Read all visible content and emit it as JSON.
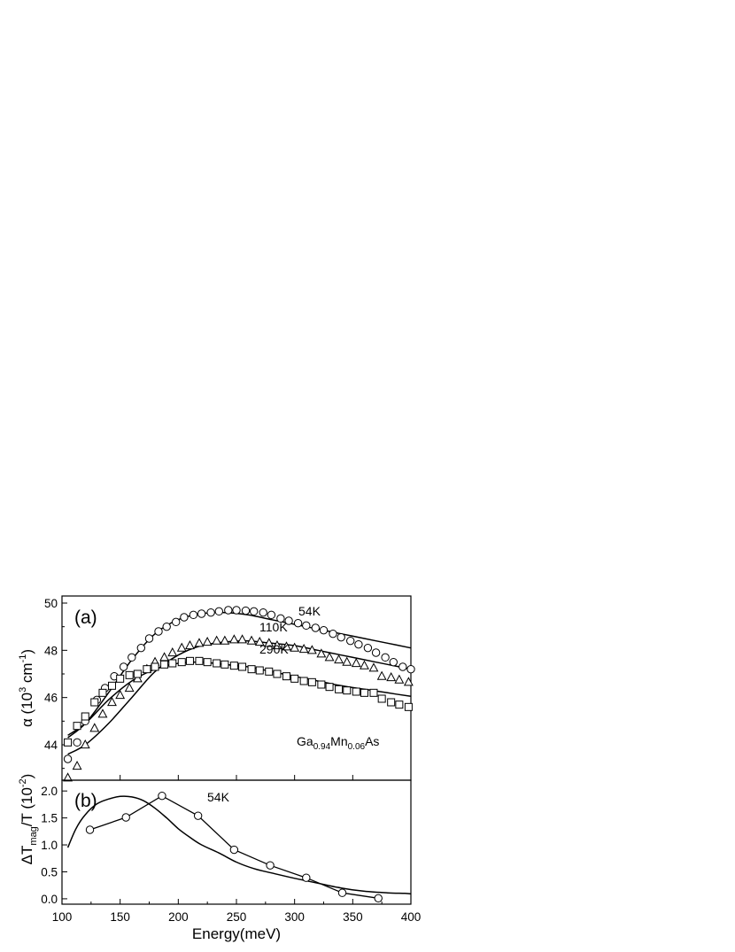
{
  "chart_data": [
    {
      "panel": "(a)",
      "type": "scatter",
      "ylabel": "α (10^3 cm^-1)",
      "ylabel_parts": {
        "main": "α (10",
        "sup1": "3",
        "mid": " cm",
        "sup2": "-1",
        "end": ")"
      },
      "xlim": [
        100,
        400
      ],
      "ylim": [
        42.5,
        50.3
      ],
      "yticks": [
        44,
        46,
        48,
        50
      ],
      "sample": {
        "base1": "Ga",
        "sub1": "0.94",
        "base2": "Mn",
        "sub2": "0.06",
        "base3": "As"
      },
      "series": [
        {
          "name": "54K",
          "marker": "circle",
          "points": [
            [
              105,
              43.4
            ],
            [
              113,
              44.1
            ],
            [
              120,
              45.0
            ],
            [
              130,
              45.9
            ],
            [
              137,
              46.4
            ],
            [
              145,
              46.9
            ],
            [
              153,
              47.3
            ],
            [
              160,
              47.7
            ],
            [
              168,
              48.1
            ],
            [
              175,
              48.5
            ],
            [
              183,
              48.8
            ],
            [
              190,
              49.0
            ],
            [
              198,
              49.2
            ],
            [
              205,
              49.4
            ],
            [
              213,
              49.5
            ],
            [
              220,
              49.55
            ],
            [
              228,
              49.6
            ],
            [
              235,
              49.65
            ],
            [
              243,
              49.7
            ],
            [
              250,
              49.7
            ],
            [
              258,
              49.68
            ],
            [
              265,
              49.65
            ],
            [
              273,
              49.6
            ],
            [
              280,
              49.5
            ],
            [
              288,
              49.35
            ],
            [
              295,
              49.25
            ],
            [
              303,
              49.15
            ],
            [
              310,
              49.05
            ],
            [
              318,
              48.95
            ],
            [
              325,
              48.85
            ],
            [
              333,
              48.7
            ],
            [
              340,
              48.55
            ],
            [
              348,
              48.4
            ],
            [
              355,
              48.25
            ],
            [
              363,
              48.1
            ],
            [
              370,
              47.9
            ],
            [
              378,
              47.7
            ],
            [
              385,
              47.5
            ],
            [
              393,
              47.3
            ],
            [
              400,
              47.2
            ]
          ]
        },
        {
          "name": "110K",
          "marker": "triangle",
          "points": [
            [
              105,
              42.6
            ],
            [
              113,
              43.1
            ],
            [
              120,
              44.0
            ],
            [
              128,
              44.7
            ],
            [
              135,
              45.3
            ],
            [
              143,
              45.8
            ],
            [
              150,
              46.1
            ],
            [
              158,
              46.4
            ],
            [
              165,
              46.8
            ],
            [
              173,
              47.2
            ],
            [
              180,
              47.5
            ],
            [
              188,
              47.7
            ],
            [
              195,
              47.9
            ],
            [
              203,
              48.1
            ],
            [
              210,
              48.2
            ],
            [
              218,
              48.3
            ],
            [
              225,
              48.35
            ],
            [
              233,
              48.4
            ],
            [
              240,
              48.4
            ],
            [
              248,
              48.45
            ],
            [
              255,
              48.45
            ],
            [
              263,
              48.4
            ],
            [
              270,
              48.35
            ],
            [
              278,
              48.3
            ],
            [
              285,
              48.2
            ],
            [
              293,
              48.15
            ],
            [
              300,
              48.1
            ],
            [
              308,
              48.05
            ],
            [
              315,
              48.0
            ],
            [
              323,
              47.85
            ],
            [
              330,
              47.7
            ],
            [
              338,
              47.6
            ],
            [
              345,
              47.5
            ],
            [
              353,
              47.45
            ],
            [
              360,
              47.35
            ],
            [
              368,
              47.25
            ],
            [
              375,
              46.9
            ],
            [
              383,
              46.85
            ],
            [
              390,
              46.75
            ],
            [
              398,
              46.65
            ]
          ]
        },
        {
          "name": "290K",
          "marker": "square",
          "points": [
            [
              105,
              44.1
            ],
            [
              113,
              44.8
            ],
            [
              120,
              45.2
            ],
            [
              128,
              45.8
            ],
            [
              135,
              46.2
            ],
            [
              143,
              46.5
            ],
            [
              150,
              46.8
            ],
            [
              158,
              46.95
            ],
            [
              165,
              47.0
            ],
            [
              173,
              47.2
            ],
            [
              180,
              47.3
            ],
            [
              188,
              47.4
            ],
            [
              195,
              47.45
            ],
            [
              203,
              47.5
            ],
            [
              210,
              47.55
            ],
            [
              218,
              47.55
            ],
            [
              225,
              47.5
            ],
            [
              233,
              47.45
            ],
            [
              240,
              47.4
            ],
            [
              248,
              47.35
            ],
            [
              255,
              47.3
            ],
            [
              263,
              47.2
            ],
            [
              270,
              47.15
            ],
            [
              278,
              47.1
            ],
            [
              285,
              47.0
            ],
            [
              293,
              46.9
            ],
            [
              300,
              46.8
            ],
            [
              308,
              46.7
            ],
            [
              315,
              46.65
            ],
            [
              323,
              46.55
            ],
            [
              330,
              46.45
            ],
            [
              338,
              46.35
            ],
            [
              345,
              46.3
            ],
            [
              353,
              46.25
            ],
            [
              360,
              46.2
            ],
            [
              368,
              46.2
            ],
            [
              375,
              45.95
            ],
            [
              383,
              45.8
            ],
            [
              390,
              45.7
            ],
            [
              398,
              45.6
            ]
          ]
        }
      ],
      "fits": [
        {
          "name": "54K",
          "points": [
            [
              105,
              44.3
            ],
            [
              120,
              44.9
            ],
            [
              140,
              46.2
            ],
            [
              160,
              47.6
            ],
            [
              180,
              48.7
            ],
            [
              200,
              49.3
            ],
            [
              220,
              49.55
            ],
            [
              240,
              49.6
            ],
            [
              260,
              49.5
            ],
            [
              280,
              49.3
            ],
            [
              300,
              49.1
            ],
            [
              320,
              48.9
            ],
            [
              340,
              48.7
            ],
            [
              360,
              48.5
            ],
            [
              380,
              48.3
            ],
            [
              400,
              48.1
            ]
          ]
        },
        {
          "name": "110K",
          "points": [
            [
              105,
              43.6
            ],
            [
              120,
              44.0
            ],
            [
              140,
              44.9
            ],
            [
              160,
              46.0
            ],
            [
              180,
              47.1
            ],
            [
              200,
              47.8
            ],
            [
              220,
              48.2
            ],
            [
              240,
              48.35
            ],
            [
              260,
              48.4
            ],
            [
              280,
              48.3
            ],
            [
              300,
              48.2
            ],
            [
              320,
              48.0
            ],
            [
              340,
              47.8
            ],
            [
              360,
              47.6
            ],
            [
              380,
              47.4
            ],
            [
              400,
              47.2
            ]
          ]
        },
        {
          "name": "290K",
          "points": [
            [
              105,
              44.4
            ],
            [
              120,
              44.9
            ],
            [
              140,
              45.9
            ],
            [
              160,
              46.7
            ],
            [
              180,
              47.2
            ],
            [
              200,
              47.45
            ],
            [
              220,
              47.5
            ],
            [
              240,
              47.4
            ],
            [
              260,
              47.3
            ],
            [
              280,
              47.1
            ],
            [
              300,
              46.9
            ],
            [
              320,
              46.7
            ],
            [
              340,
              46.5
            ],
            [
              360,
              46.35
            ],
            [
              380,
              46.2
            ],
            [
              400,
              46.05
            ]
          ]
        }
      ]
    },
    {
      "panel": "(b)",
      "type": "line",
      "ylabel": "ΔT_mag/T (10^-2)",
      "ylabel_parts": {
        "main": "ΔT",
        "sub": "mag",
        "mid": "/T (10",
        "sup": "-2",
        "end": ")"
      },
      "xlabel": "Energy(meV)",
      "xlim": [
        100,
        400
      ],
      "ylim": [
        -0.1,
        2.2
      ],
      "yticks": [
        "0.0",
        "0.5",
        "1.0",
        "1.5",
        "2.0"
      ],
      "xticks": [
        100,
        150,
        200,
        250,
        300,
        350,
        400
      ],
      "series": [
        {
          "name": "54K",
          "marker": "circle",
          "points": [
            [
              124,
              1.28
            ],
            [
              155,
              1.51
            ],
            [
              186,
              1.91
            ],
            [
              217,
              1.54
            ],
            [
              248,
              0.91
            ],
            [
              279,
              0.62
            ],
            [
              310,
              0.39
            ],
            [
              341,
              0.11
            ],
            [
              372,
              0.01
            ]
          ]
        }
      ],
      "fits": [
        {
          "name": "54K",
          "points": [
            [
              105,
              0.95
            ],
            [
              112,
              1.3
            ],
            [
              120,
              1.56
            ],
            [
              130,
              1.76
            ],
            [
              140,
              1.85
            ],
            [
              150,
              1.9
            ],
            [
              160,
              1.89
            ],
            [
              170,
              1.82
            ],
            [
              180,
              1.68
            ],
            [
              190,
              1.5
            ],
            [
              200,
              1.3
            ],
            [
              210,
              1.14
            ],
            [
              220,
              1.0
            ],
            [
              235,
              0.85
            ],
            [
              250,
              0.68
            ],
            [
              265,
              0.56
            ],
            [
              280,
              0.48
            ],
            [
              300,
              0.38
            ],
            [
              320,
              0.29
            ],
            [
              340,
              0.2
            ],
            [
              360,
              0.14
            ],
            [
              380,
              0.11
            ],
            [
              395,
              0.1
            ],
            [
              400,
              0.09
            ]
          ]
        }
      ]
    }
  ]
}
